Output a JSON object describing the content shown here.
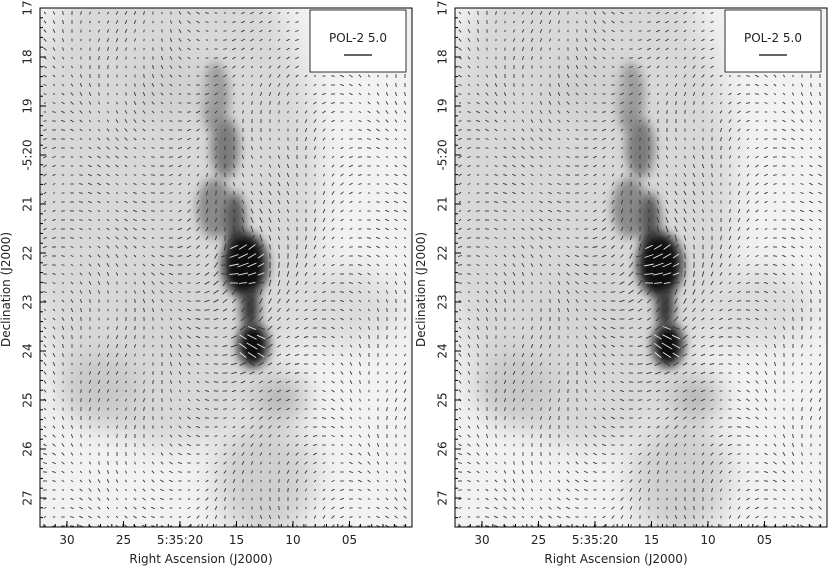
{
  "panels": [
    {
      "legend": "POL-2 5.0",
      "x_label": "Right Ascension (J2000)",
      "y_label": "Declination (J2000)",
      "x_ticks": [
        "30",
        "25",
        "5:35:20",
        "15",
        "10",
        "05"
      ],
      "y_ticks": [
        "17",
        "18",
        "19",
        "-5:20",
        "21",
        "22",
        "23",
        "24",
        "25",
        "26",
        "27"
      ]
    },
    {
      "legend": "POL-2 5.0",
      "x_label": "Right Ascension (J2000)",
      "y_label": "Declination (J2000)",
      "x_ticks": [
        "30",
        "25",
        "5:35:20",
        "15",
        "10",
        "05"
      ],
      "y_ticks": [
        "17",
        "18",
        "19",
        "-5:20",
        "21",
        "22",
        "23",
        "24",
        "25",
        "26",
        "27"
      ]
    }
  ]
}
